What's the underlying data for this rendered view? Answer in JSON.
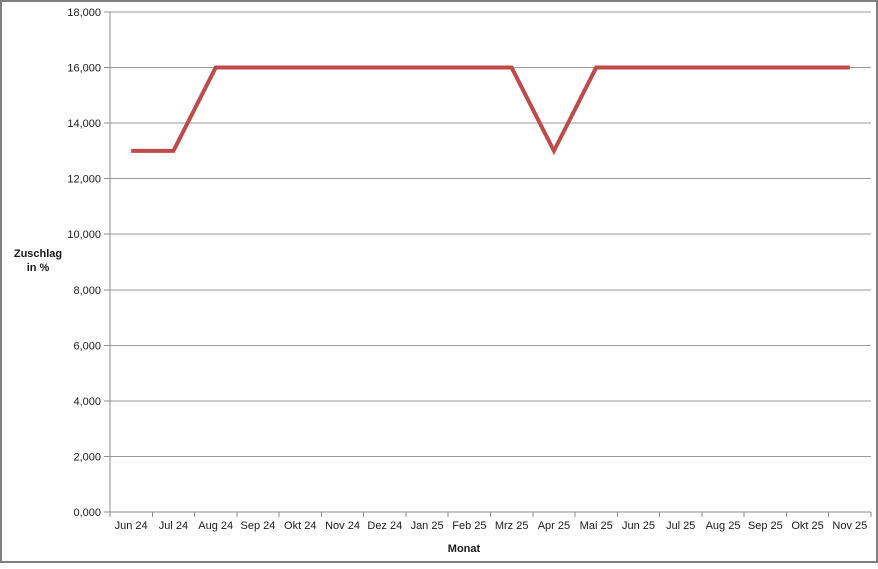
{
  "chart_data": {
    "type": "line",
    "title": "",
    "xlabel": "Monat",
    "ylabel": "Zuschlag in %",
    "ylabel_lines": [
      "Zuschlag",
      "in %"
    ],
    "categories": [
      "Jun 24",
      "Jul 24",
      "Aug 24",
      "Sep 24",
      "Okt 24",
      "Nov 24",
      "Dez 24",
      "Jan 25",
      "Feb 25",
      "Mrz 25",
      "Apr 25",
      "Mai 25",
      "Jun 25",
      "Jul 25",
      "Aug 25",
      "Sep 25",
      "Okt 25",
      "Nov 25"
    ],
    "series": [
      {
        "name": "Zuschlag in %",
        "values": [
          13,
          13,
          16,
          16,
          16,
          16,
          16,
          16,
          16,
          16,
          13,
          16,
          16,
          16,
          16,
          16,
          16,
          16
        ],
        "values_displayed": [
          "13,000",
          "13,000",
          "16,000",
          "16,000",
          "16,000",
          "16,000",
          "16,000",
          "16,000",
          "16,000",
          "16,000",
          "13,000",
          "16,000",
          "16,000",
          "16,000",
          "16,000",
          "16,000",
          "16,000",
          "16,000"
        ]
      }
    ],
    "ylim": [
      0,
      18
    ],
    "y_tick_values": [
      0,
      2,
      4,
      6,
      8,
      10,
      12,
      14,
      16,
      18
    ],
    "y_tick_labels": [
      "0,000",
      "2,000",
      "4,000",
      "6,000",
      "8,000",
      "10,000",
      "12,000",
      "14,000",
      "16,000",
      "18,000"
    ],
    "number_format": "comma-decimal",
    "grid": "horizontal",
    "legend": false,
    "colors": {
      "line": "#be4b48",
      "gridline": "#9a9a9a",
      "axis": "#8c8c8c",
      "tick": "#8c8c8c",
      "border": "#7f7f7f",
      "text": "#1a1a1a",
      "background": "#ffffff"
    }
  }
}
